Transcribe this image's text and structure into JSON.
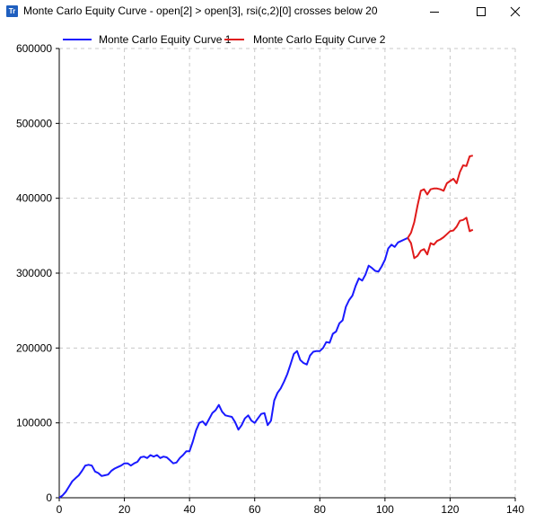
{
  "window": {
    "title": "Monte Carlo Equity Curve - open[2] > open[3], rsi(c,2)[0] crosses below 20",
    "icon": "tradestation-app-icon",
    "icon_text": "Tr"
  },
  "chart_data": {
    "type": "line",
    "title": "",
    "xlabel": "",
    "ylabel": "",
    "xlim": [
      0,
      140
    ],
    "ylim": [
      0,
      600000
    ],
    "xticks": [
      0,
      20,
      40,
      60,
      80,
      100,
      120,
      140
    ],
    "yticks": [
      0,
      100000,
      200000,
      300000,
      400000,
      500000,
      600000
    ],
    "grid": true,
    "legend_position": "top",
    "series": [
      {
        "name": "Monte Carlo Equity Curve 1",
        "color": "#1a1aff",
        "x": [
          0,
          1,
          2,
          3,
          4,
          5,
          6,
          7,
          8,
          9,
          10,
          11,
          12,
          13,
          14,
          15,
          16,
          17,
          18,
          19,
          20,
          21,
          22,
          23,
          24,
          25,
          26,
          27,
          28,
          29,
          30,
          31,
          32,
          33,
          34,
          35,
          36,
          37,
          38,
          39,
          40,
          41,
          42,
          43,
          44,
          45,
          46,
          47,
          48,
          49,
          50,
          51,
          52,
          53,
          54,
          55,
          56,
          57,
          58,
          59,
          60,
          61,
          62,
          63,
          64,
          65,
          66,
          67,
          68,
          69,
          70,
          71,
          72,
          73,
          74,
          75,
          76,
          77,
          78,
          79,
          80,
          81,
          82,
          83,
          84,
          85,
          86,
          87,
          88,
          89,
          90,
          91,
          92,
          93,
          94,
          95,
          96,
          97,
          98,
          99,
          100,
          101,
          102,
          103,
          104,
          105,
          106,
          107
        ],
        "values": [
          0,
          3000,
          8000,
          15000,
          22000,
          26000,
          30000,
          36000,
          43000,
          44000,
          43000,
          35000,
          33000,
          29000,
          30000,
          31000,
          36000,
          39000,
          41000,
          43000,
          46000,
          46000,
          43000,
          46000,
          48000,
          54000,
          55000,
          53000,
          57000,
          55000,
          57000,
          53000,
          55000,
          54000,
          50000,
          46000,
          47000,
          53000,
          57000,
          62000,
          62000,
          75000,
          90000,
          100000,
          102000,
          97000,
          105000,
          113000,
          117000,
          124000,
          115000,
          110000,
          109000,
          108000,
          101000,
          91000,
          97000,
          106000,
          110000,
          103000,
          100000,
          106000,
          112000,
          113000,
          97000,
          103000,
          130000,
          140000,
          146000,
          155000,
          165000,
          178000,
          192000,
          196000,
          184000,
          180000,
          178000,
          190000,
          195000,
          196000,
          196000,
          200000,
          208000,
          207000,
          219000,
          222000,
          233000,
          237000,
          255000,
          264000,
          270000,
          283000,
          293000,
          290000,
          298000,
          310000,
          307000,
          303000,
          302000,
          309000,
          318000,
          333000,
          338000,
          335000,
          341000,
          343000,
          345000,
          347000
        ]
      },
      {
        "name": "Monte Carlo Equity Curve 2",
        "color": "#e01b1b",
        "branches": [
          {
            "x": [
              107,
              108,
              109,
              110,
              111,
              112,
              113,
              114,
              115,
              116,
              117,
              118,
              119,
              120,
              121,
              122,
              123,
              124,
              125,
              126,
              127
            ],
            "values": [
              347,
              354,
              368,
              390,
              410,
              412,
              405,
              412,
              413,
              413,
              412,
              410,
              420,
              423,
              426,
              420,
              435,
              444,
              443,
              456,
              457
            ]
          },
          {
            "x": [
              107,
              108,
              109,
              110,
              111,
              112,
              113,
              114,
              115,
              116,
              117,
              118,
              119,
              120,
              121,
              122,
              123,
              124,
              125,
              126,
              127
            ],
            "values": [
              347,
              340,
              320,
              323,
              330,
              332,
              325,
              340,
              338,
              343,
              345,
              348,
              352,
              356,
              357,
              362,
              370,
              371,
              374,
              356,
              358
            ]
          }
        ],
        "values_unit_note": "thousands"
      }
    ]
  }
}
